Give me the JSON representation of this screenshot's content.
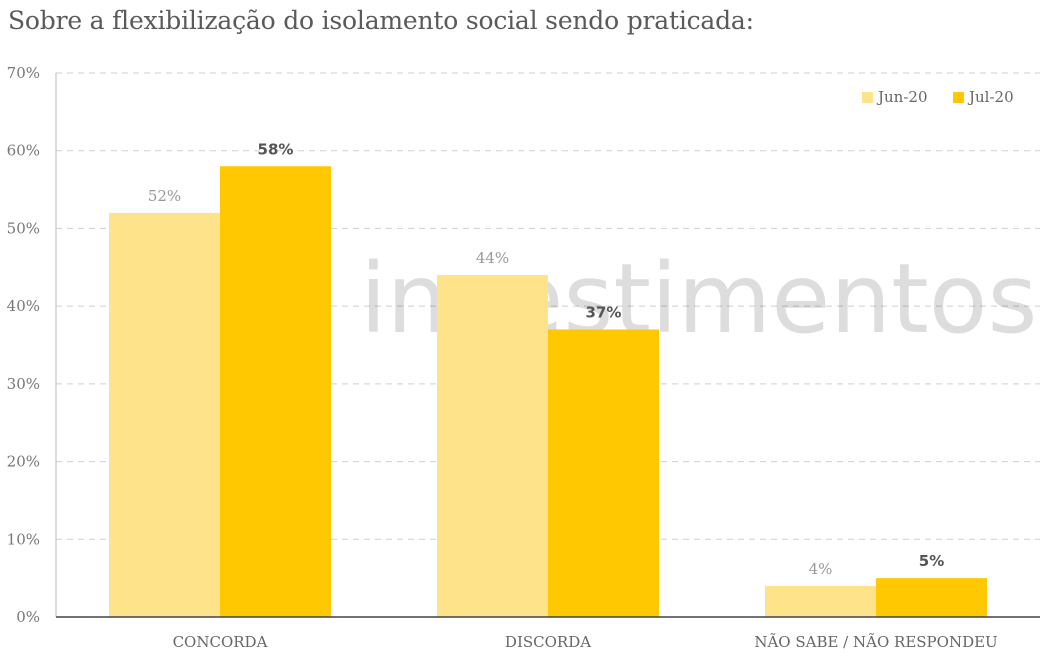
{
  "title": "Sobre a flexibilização do isolamento social sendo praticada:",
  "watermark": "investimentos",
  "chart_data": {
    "type": "bar",
    "categories": [
      "CONCORDA",
      "DISCORDA",
      "NÃO SABE / NÃO RESPONDEU"
    ],
    "series": [
      {
        "name": "Jun-20",
        "values": [
          52,
          44,
          4
        ],
        "labels": [
          "52%",
          "44%",
          "4%"
        ],
        "color": "#FFE38A"
      },
      {
        "name": "Jul-20",
        "values": [
          58,
          37,
          5
        ],
        "labels": [
          "58%",
          "37%",
          "5%"
        ],
        "color": "#FFC800"
      }
    ],
    "ylim": [
      0,
      70
    ],
    "yticks": [
      0,
      10,
      20,
      30,
      40,
      50,
      60,
      70
    ],
    "ytick_labels": [
      "0%",
      "10%",
      "20%",
      "30%",
      "40%",
      "50%",
      "60%",
      "70%"
    ],
    "xlabel": "",
    "ylabel": "",
    "grid": true,
    "legend_position": "top-right"
  }
}
